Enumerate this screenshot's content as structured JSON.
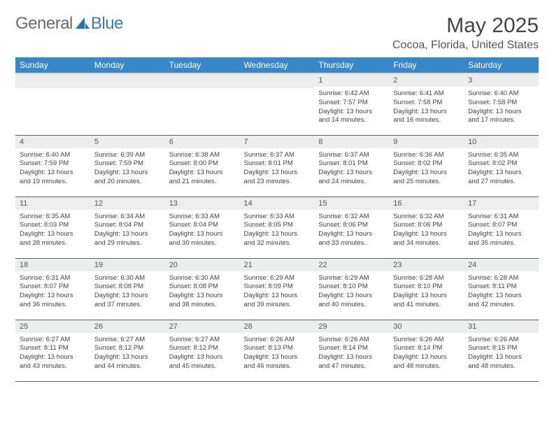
{
  "brand": {
    "part1": "General",
    "part2": "Blue"
  },
  "title": "May 2025",
  "location": "Cocoa, Florida, United States",
  "colors": {
    "accent": "#3a87c8",
    "rowline": "#3a6a9a",
    "daybg": "#eceeee"
  },
  "weekdays": [
    "Sunday",
    "Monday",
    "Tuesday",
    "Wednesday",
    "Thursday",
    "Friday",
    "Saturday"
  ],
  "weeks": [
    [
      null,
      null,
      null,
      null,
      {
        "d": "1",
        "sr": "6:42 AM",
        "ss": "7:57 PM",
        "dl": "13 hours and 14 minutes."
      },
      {
        "d": "2",
        "sr": "6:41 AM",
        "ss": "7:58 PM",
        "dl": "13 hours and 16 minutes."
      },
      {
        "d": "3",
        "sr": "6:40 AM",
        "ss": "7:58 PM",
        "dl": "13 hours and 17 minutes."
      }
    ],
    [
      {
        "d": "4",
        "sr": "6:40 AM",
        "ss": "7:59 PM",
        "dl": "13 hours and 19 minutes."
      },
      {
        "d": "5",
        "sr": "6:39 AM",
        "ss": "7:59 PM",
        "dl": "13 hours and 20 minutes."
      },
      {
        "d": "6",
        "sr": "6:38 AM",
        "ss": "8:00 PM",
        "dl": "13 hours and 21 minutes."
      },
      {
        "d": "7",
        "sr": "6:37 AM",
        "ss": "8:01 PM",
        "dl": "13 hours and 23 minutes."
      },
      {
        "d": "8",
        "sr": "6:37 AM",
        "ss": "8:01 PM",
        "dl": "13 hours and 24 minutes."
      },
      {
        "d": "9",
        "sr": "6:36 AM",
        "ss": "8:02 PM",
        "dl": "13 hours and 25 minutes."
      },
      {
        "d": "10",
        "sr": "6:35 AM",
        "ss": "8:02 PM",
        "dl": "13 hours and 27 minutes."
      }
    ],
    [
      {
        "d": "11",
        "sr": "6:35 AM",
        "ss": "8:03 PM",
        "dl": "13 hours and 28 minutes."
      },
      {
        "d": "12",
        "sr": "6:34 AM",
        "ss": "8:04 PM",
        "dl": "13 hours and 29 minutes."
      },
      {
        "d": "13",
        "sr": "6:33 AM",
        "ss": "8:04 PM",
        "dl": "13 hours and 30 minutes."
      },
      {
        "d": "14",
        "sr": "6:33 AM",
        "ss": "8:05 PM",
        "dl": "13 hours and 32 minutes."
      },
      {
        "d": "15",
        "sr": "6:32 AM",
        "ss": "8:06 PM",
        "dl": "13 hours and 33 minutes."
      },
      {
        "d": "16",
        "sr": "6:32 AM",
        "ss": "8:06 PM",
        "dl": "13 hours and 34 minutes."
      },
      {
        "d": "17",
        "sr": "6:31 AM",
        "ss": "8:07 PM",
        "dl": "13 hours and 35 minutes."
      }
    ],
    [
      {
        "d": "18",
        "sr": "6:31 AM",
        "ss": "8:07 PM",
        "dl": "13 hours and 36 minutes."
      },
      {
        "d": "19",
        "sr": "6:30 AM",
        "ss": "8:08 PM",
        "dl": "13 hours and 37 minutes."
      },
      {
        "d": "20",
        "sr": "6:30 AM",
        "ss": "8:08 PM",
        "dl": "13 hours and 38 minutes."
      },
      {
        "d": "21",
        "sr": "6:29 AM",
        "ss": "8:09 PM",
        "dl": "13 hours and 39 minutes."
      },
      {
        "d": "22",
        "sr": "6:29 AM",
        "ss": "8:10 PM",
        "dl": "13 hours and 40 minutes."
      },
      {
        "d": "23",
        "sr": "6:28 AM",
        "ss": "8:10 PM",
        "dl": "13 hours and 41 minutes."
      },
      {
        "d": "24",
        "sr": "6:28 AM",
        "ss": "8:11 PM",
        "dl": "13 hours and 42 minutes."
      }
    ],
    [
      {
        "d": "25",
        "sr": "6:27 AM",
        "ss": "8:11 PM",
        "dl": "13 hours and 43 minutes."
      },
      {
        "d": "26",
        "sr": "6:27 AM",
        "ss": "8:12 PM",
        "dl": "13 hours and 44 minutes."
      },
      {
        "d": "27",
        "sr": "6:27 AM",
        "ss": "8:12 PM",
        "dl": "13 hours and 45 minutes."
      },
      {
        "d": "28",
        "sr": "6:26 AM",
        "ss": "8:13 PM",
        "dl": "13 hours and 46 minutes."
      },
      {
        "d": "29",
        "sr": "6:26 AM",
        "ss": "8:14 PM",
        "dl": "13 hours and 47 minutes."
      },
      {
        "d": "30",
        "sr": "6:26 AM",
        "ss": "8:14 PM",
        "dl": "13 hours and 48 minutes."
      },
      {
        "d": "31",
        "sr": "6:26 AM",
        "ss": "8:15 PM",
        "dl": "13 hours and 48 minutes."
      }
    ]
  ],
  "labels": {
    "sunrise": "Sunrise: ",
    "sunset": "Sunset: ",
    "daylight": "Daylight: "
  }
}
